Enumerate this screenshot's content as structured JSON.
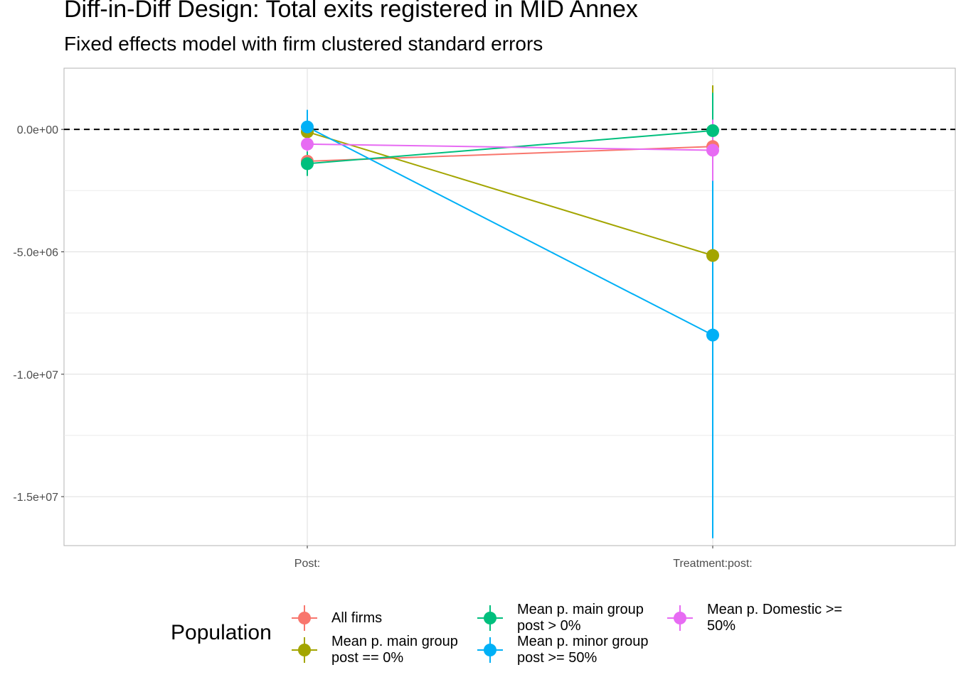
{
  "title": "Diff-in-Diff Design: Total exits registered in MID Annex",
  "subtitle": "Fixed effects model with firm clustered standard errors",
  "chart_data": {
    "type": "scatter",
    "x_categories": [
      "Post:",
      "Treatment:post:"
    ],
    "ylim": [
      -17000000,
      2500000
    ],
    "y_ticks": [
      0,
      -5000000,
      -10000000,
      -15000000
    ],
    "y_tick_labels": [
      "0.0e+00",
      "-5.0e+06",
      "-1.0e+07",
      "-1.5e+07"
    ],
    "reference_line": 0,
    "grid": true,
    "legend_position": "bottom",
    "legend_title": "Population",
    "series": [
      {
        "name": "All firms",
        "color": "#F8766D",
        "values": [
          -1300000,
          -700000
        ],
        "lower": [
          -1700000,
          -1300000
        ],
        "upper": [
          -900000,
          -100000
        ]
      },
      {
        "name": "Mean p. main group\npost == 0%",
        "color": "#A3A500",
        "values": [
          -100000,
          -5150000
        ],
        "lower": [
          -400000,
          -12000000
        ],
        "upper": [
          200000,
          1800000
        ]
      },
      {
        "name": "Mean p. main group\npost > 0%",
        "color": "#00BF7D",
        "values": [
          -1400000,
          -50000
        ],
        "lower": [
          -1900000,
          -3000000
        ],
        "upper": [
          -900000,
          1500000
        ]
      },
      {
        "name": "Mean p. minor group\npost >= 50%",
        "color": "#00B0F6",
        "values": [
          100000,
          -8400000
        ],
        "lower": [
          -600000,
          -16700000
        ],
        "upper": [
          800000,
          -2100000
        ]
      },
      {
        "name": "Mean p. Domestic >=\n50%",
        "color": "#E76BF3",
        "values": [
          -600000,
          -850000
        ],
        "lower": [
          -900000,
          -2100000
        ],
        "upper": [
          -300000,
          400000
        ]
      }
    ]
  }
}
